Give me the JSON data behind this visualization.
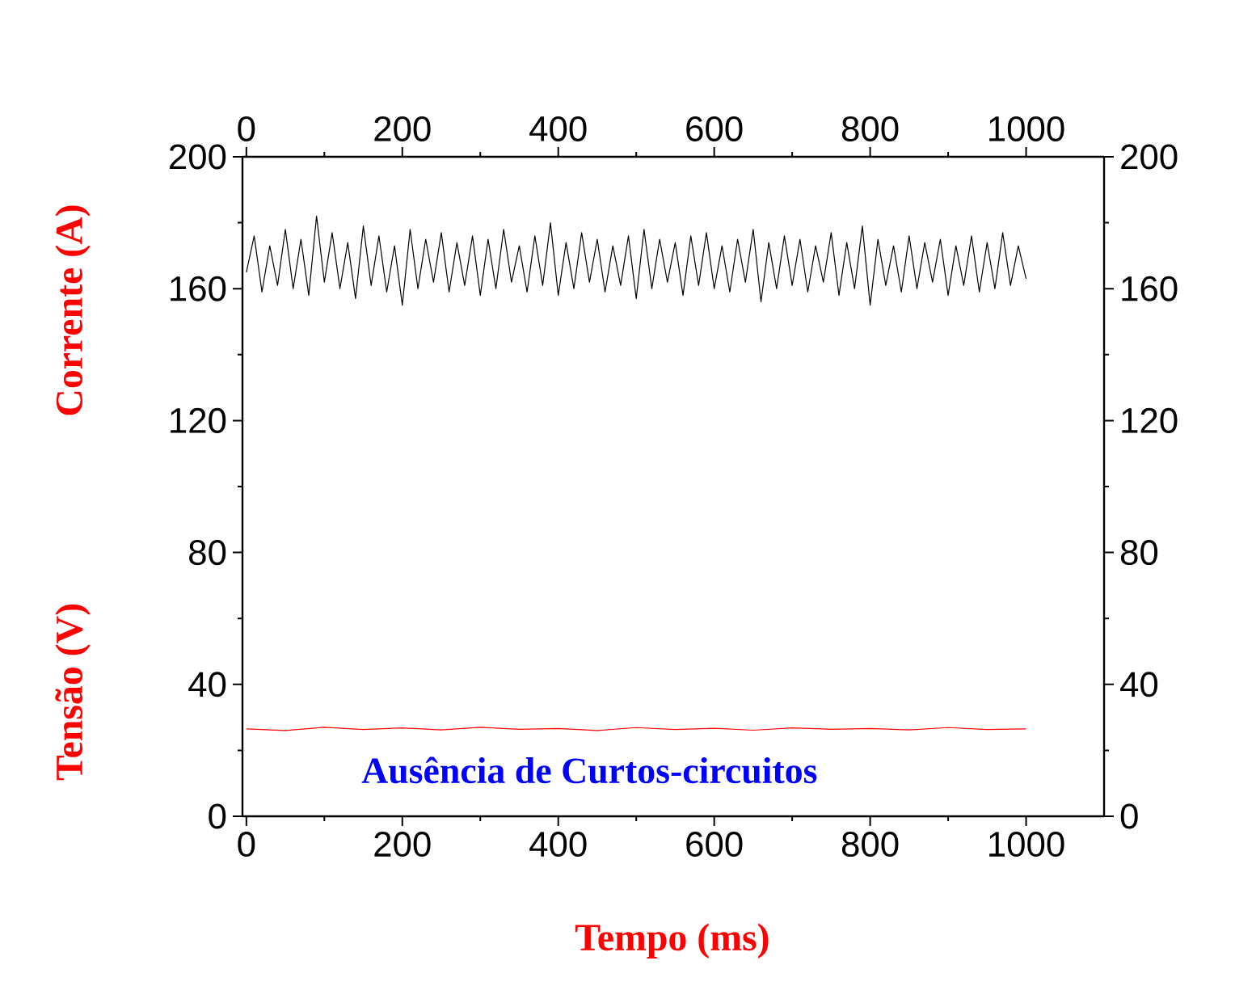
{
  "chart_data": {
    "type": "line",
    "xlabel": "Tempo (ms)",
    "annotations": [
      "Corrente (A)",
      "Tensão (V)",
      "Ausência de Curtos-circuitos"
    ],
    "xlim": [
      -5,
      1100
    ],
    "xticks": [
      0,
      200,
      400,
      600,
      800,
      1000
    ],
    "x2lim": [
      -5,
      1100
    ],
    "x2ticks": [
      0,
      200,
      400,
      600,
      800,
      1000
    ],
    "ylim": [
      0,
      200
    ],
    "yticks": [
      0,
      40,
      80,
      120,
      160,
      200
    ],
    "y2lim": [
      0,
      200
    ],
    "y2ticks": [
      0,
      40,
      80,
      120,
      160,
      200
    ],
    "grid": false,
    "marker": "none",
    "line_style": "solid",
    "series": [
      {
        "color": "#000000",
        "x": [
          0,
          10,
          20,
          30,
          40,
          50,
          60,
          70,
          80,
          90,
          100,
          110,
          120,
          130,
          140,
          150,
          160,
          170,
          180,
          190,
          200,
          210,
          220,
          230,
          240,
          250,
          260,
          270,
          280,
          290,
          300,
          310,
          320,
          330,
          340,
          350,
          360,
          370,
          380,
          390,
          400,
          410,
          420,
          430,
          440,
          450,
          460,
          470,
          480,
          490,
          500,
          510,
          520,
          530,
          540,
          550,
          560,
          570,
          580,
          590,
          600,
          610,
          620,
          630,
          640,
          650,
          660,
          670,
          680,
          690,
          700,
          710,
          720,
          730,
          740,
          750,
          760,
          770,
          780,
          790,
          800,
          810,
          820,
          830,
          840,
          850,
          860,
          870,
          880,
          890,
          900,
          910,
          920,
          930,
          940,
          950,
          960,
          970,
          980,
          990,
          1000
        ],
        "values": [
          165,
          176,
          159,
          173,
          161,
          178,
          160,
          175,
          158,
          182,
          162,
          177,
          160,
          174,
          157,
          179,
          161,
          176,
          159,
          173,
          155,
          178,
          160,
          175,
          162,
          177,
          159,
          174,
          161,
          176,
          158,
          175,
          160,
          178,
          162,
          173,
          159,
          176,
          161,
          180,
          158,
          174,
          160,
          177,
          162,
          175,
          159,
          173,
          161,
          176,
          157,
          178,
          160,
          175,
          162,
          174,
          158,
          176,
          161,
          177,
          160,
          173,
          159,
          175,
          162,
          178,
          156,
          174,
          160,
          176,
          161,
          175,
          159,
          173,
          162,
          177,
          158,
          174,
          160,
          179,
          155,
          175,
          161,
          173,
          159,
          176,
          160,
          174,
          162,
          175,
          158,
          173,
          161,
          176,
          159,
          174,
          160,
          177,
          161,
          173,
          163
        ]
      },
      {
        "color": "#ff0000",
        "x": [
          0,
          50,
          100,
          150,
          200,
          250,
          300,
          350,
          400,
          450,
          500,
          550,
          600,
          650,
          700,
          750,
          800,
          850,
          900,
          950,
          1000
        ],
        "values": [
          26.5,
          26,
          27,
          26.3,
          26.8,
          26.2,
          27,
          26.4,
          26.6,
          26,
          26.9,
          26.3,
          26.7,
          26.1,
          26.8,
          26.4,
          26.6,
          26.2,
          26.9,
          26.3,
          26.5
        ]
      }
    ]
  }
}
